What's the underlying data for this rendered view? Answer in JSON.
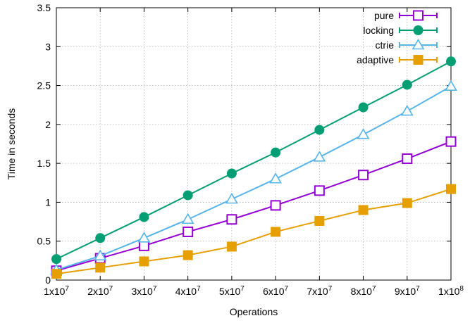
{
  "chart_data": {
    "type": "line",
    "xlabel": "Operations",
    "ylabel": "Time in seconds",
    "x_tick_labels": [
      {
        "base": "1x10",
        "exp": "7"
      },
      {
        "base": "2x10",
        "exp": "7"
      },
      {
        "base": "3x10",
        "exp": "7"
      },
      {
        "base": "4x10",
        "exp": "7"
      },
      {
        "base": "5x10",
        "exp": "7"
      },
      {
        "base": "6x10",
        "exp": "7"
      },
      {
        "base": "7x10",
        "exp": "7"
      },
      {
        "base": "8x10",
        "exp": "7"
      },
      {
        "base": "9x10",
        "exp": "7"
      },
      {
        "base": "1x10",
        "exp": "8"
      }
    ],
    "y_tick_labels": [
      "0",
      "0.5",
      "1",
      "1.5",
      "2",
      "2.5",
      "3",
      "3.5"
    ],
    "x": [
      10000000,
      20000000,
      30000000,
      40000000,
      50000000,
      60000000,
      70000000,
      80000000,
      90000000,
      100000000
    ],
    "xlim": [
      10000000,
      100000000
    ],
    "ylim": [
      0,
      3.5
    ],
    "grid": true,
    "legend_position": "top-right",
    "series": [
      {
        "name": "pure",
        "color": "#9400d3",
        "marker": "open-square",
        "values": [
          0.12,
          0.28,
          0.44,
          0.62,
          0.78,
          0.96,
          1.15,
          1.35,
          1.56,
          1.78
        ]
      },
      {
        "name": "locking",
        "color": "#009e73",
        "marker": "filled-circle",
        "values": [
          0.27,
          0.54,
          0.81,
          1.09,
          1.37,
          1.64,
          1.93,
          2.22,
          2.51,
          2.81
        ]
      },
      {
        "name": "ctrie",
        "color": "#56b4e9",
        "marker": "open-triangle",
        "values": [
          0.13,
          0.31,
          0.54,
          0.78,
          1.04,
          1.3,
          1.58,
          1.87,
          2.17,
          2.49
        ]
      },
      {
        "name": "adaptive",
        "color": "#e69f00",
        "marker": "filled-square",
        "values": [
          0.08,
          0.16,
          0.24,
          0.32,
          0.43,
          0.62,
          0.76,
          0.9,
          0.99,
          1.17
        ]
      }
    ]
  }
}
